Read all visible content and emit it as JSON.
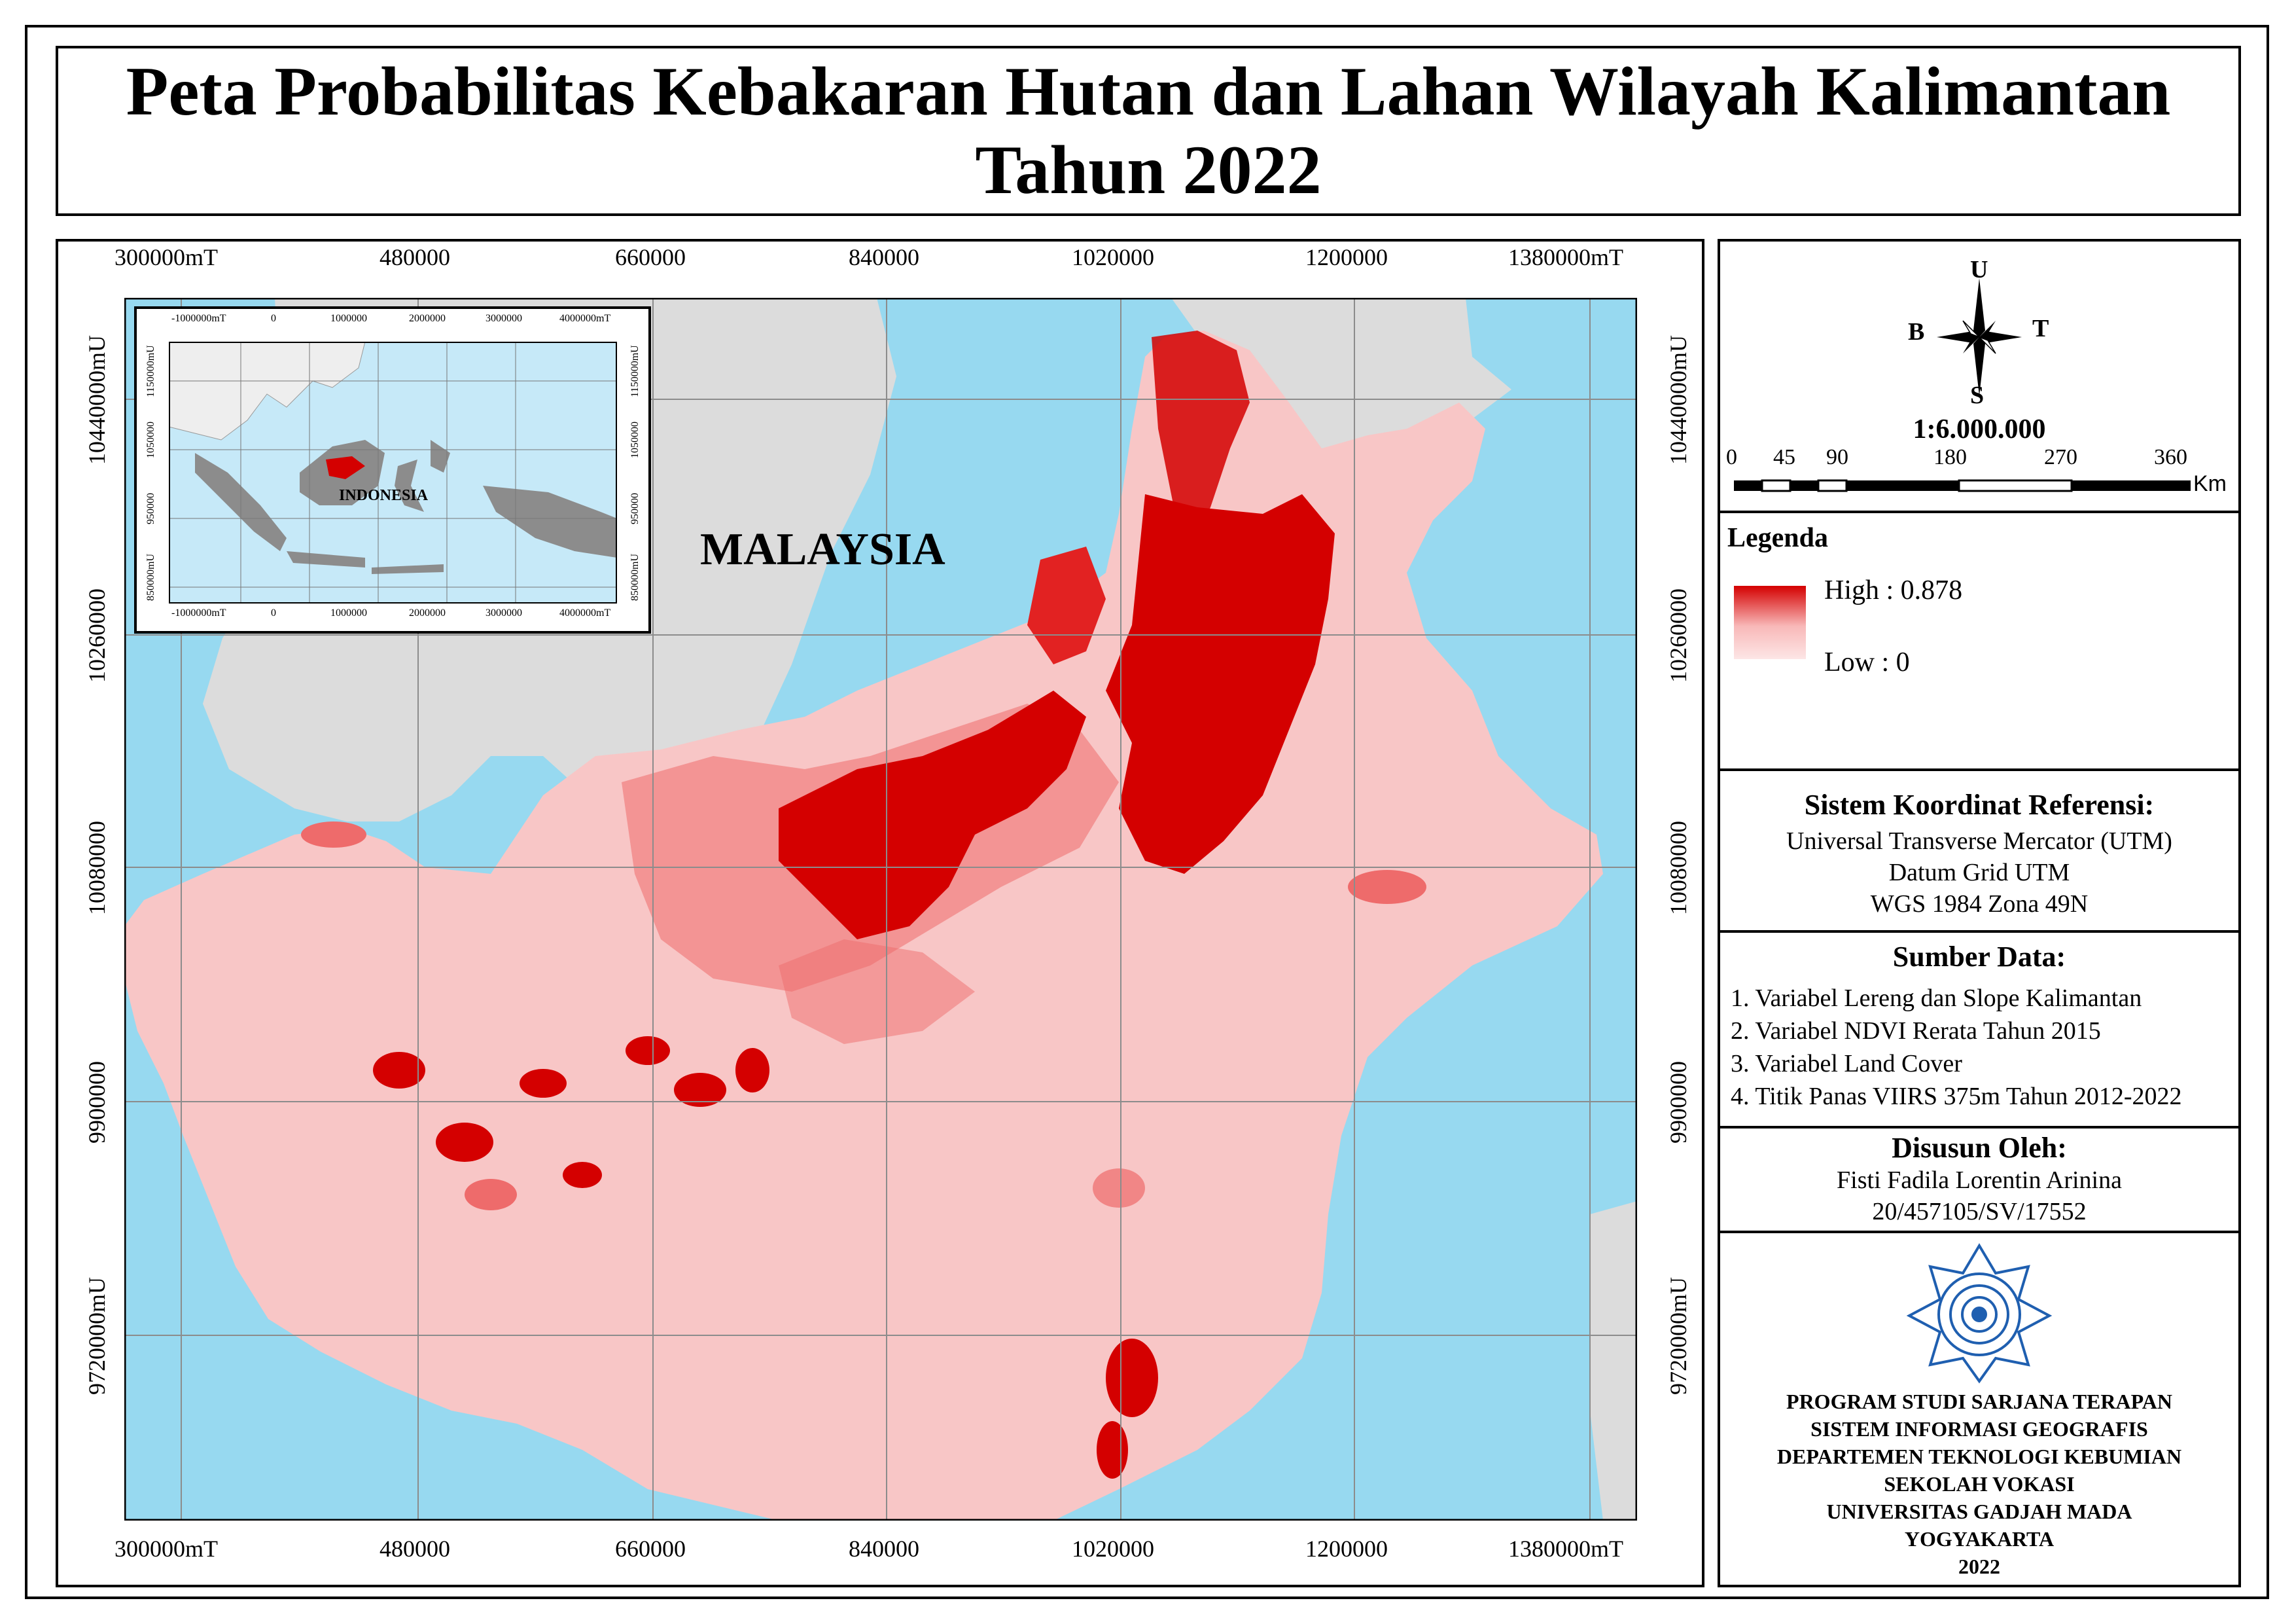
{
  "title": {
    "line1": "Peta Probabilitas Kebakaran Hutan dan Lahan Wilayah Kalimantan",
    "line2": "Tahun 2022"
  },
  "map": {
    "country_label": "MALAYSIA",
    "x_ticks": [
      "300000mT",
      "480000",
      "660000",
      "840000",
      "1020000",
      "1200000",
      "1380000mT"
    ],
    "y_ticks": [
      "10440000mU",
      "10260000",
      "10080000",
      "9900000",
      "9720000mU"
    ],
    "colors": {
      "sea": "#97d9f0",
      "land_other": "#dcdcdc",
      "low": "#f8c6c6",
      "mid": "#ee6b6b",
      "high": "#d40000"
    }
  },
  "inset": {
    "country_label": "INDONESIA",
    "x_ticks": [
      "-1000000mT",
      "0",
      "1000000",
      "2000000",
      "3000000",
      "4000000mT"
    ],
    "y_ticks": [
      "1150000mU",
      "1050000",
      "950000",
      "850000mU"
    ]
  },
  "compass": {
    "north": "U",
    "south": "S",
    "west": "B",
    "east": "T",
    "icon": "compass-rose-icon"
  },
  "scale": {
    "ratio": "1:6.000.000",
    "labels": [
      "0",
      "45",
      "90",
      "180",
      "270",
      "360"
    ],
    "unit": "Km"
  },
  "legend": {
    "title": "Legenda",
    "high": "High : 0.878",
    "low": "Low : 0"
  },
  "crs": {
    "title": "Sistem Koordinat Referensi:",
    "lines": [
      "Universal Transverse Mercator (UTM)",
      "Datum Grid UTM",
      "WGS 1984 Zona 49N"
    ]
  },
  "sources": {
    "title": "Sumber Data:",
    "items": [
      "1. Variabel Lereng dan Slope Kalimantan",
      "2. Variabel NDVI Rerata Tahun 2015",
      "3. Variabel Land Cover",
      "4. Titik Panas VIIRS 375m Tahun 2012-2022"
    ]
  },
  "author": {
    "title": "Disusun Oleh:",
    "name": "Fisti Fadila Lorentin Arinina",
    "id": "20/457105/SV/17552"
  },
  "institution": {
    "logo": "ugm-seal-icon",
    "lines": [
      "PROGRAM STUDI SARJANA TERAPAN",
      "SISTEM INFORMASI GEOGRAFIS",
      "DEPARTEMEN TEKNOLOGI KEBUMIAN",
      "SEKOLAH VOKASI",
      "UNIVERSITAS GADJAH MADA",
      "YOGYAKARTA",
      "2022"
    ]
  }
}
